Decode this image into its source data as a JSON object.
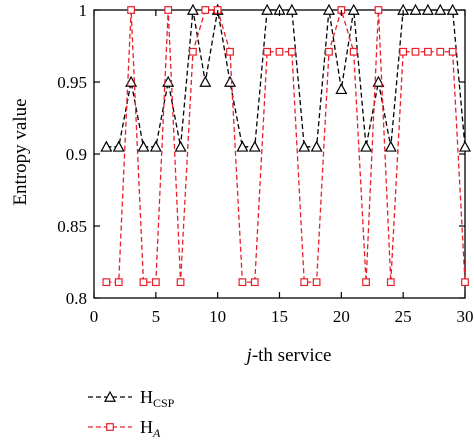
{
  "chart_data": {
    "type": "line",
    "title": "",
    "xlabel": {
      "italic": "j",
      "rest": "-th service"
    },
    "ylabel": "Entropy value",
    "xlim": [
      0,
      30
    ],
    "ylim": [
      0.8,
      1
    ],
    "xticks": [
      0,
      5,
      10,
      15,
      20,
      25,
      30
    ],
    "yticks": [
      0.8,
      0.85,
      0.9,
      0.95,
      1
    ],
    "ytick_labels": [
      "0.8",
      "0.85",
      "0.9",
      "0.95",
      "1"
    ],
    "grid": false,
    "legend_position": "bottom-left",
    "x": [
      1,
      2,
      3,
      4,
      5,
      6,
      7,
      8,
      9,
      10,
      11,
      12,
      13,
      14,
      15,
      16,
      17,
      18,
      19,
      20,
      21,
      22,
      23,
      24,
      25,
      26,
      27,
      28,
      29,
      30
    ],
    "series": [
      {
        "name": "H",
        "subscript": "CSP",
        "subscript_italic": false,
        "marker": "triangle",
        "color": "#000000",
        "values": [
          0.905,
          0.905,
          0.95,
          0.905,
          0.905,
          0.95,
          0.905,
          1,
          0.95,
          1,
          0.95,
          0.905,
          0.905,
          1,
          1,
          1,
          0.905,
          0.905,
          1,
          0.945,
          1,
          0.905,
          0.95,
          0.905,
          1,
          1,
          1,
          1,
          1,
          0.905
        ]
      },
      {
        "name": "H",
        "subscript": "A",
        "subscript_italic": true,
        "marker": "square",
        "color": "#e8202a",
        "values": [
          0.811,
          0.811,
          1,
          0.811,
          0.811,
          1,
          0.811,
          0.971,
          1,
          1,
          0.971,
          0.811,
          0.811,
          0.971,
          0.971,
          0.971,
          0.811,
          0.811,
          0.971,
          1,
          0.971,
          0.811,
          1,
          0.811,
          0.971,
          0.971,
          0.971,
          0.971,
          0.971,
          0.811
        ]
      }
    ]
  }
}
